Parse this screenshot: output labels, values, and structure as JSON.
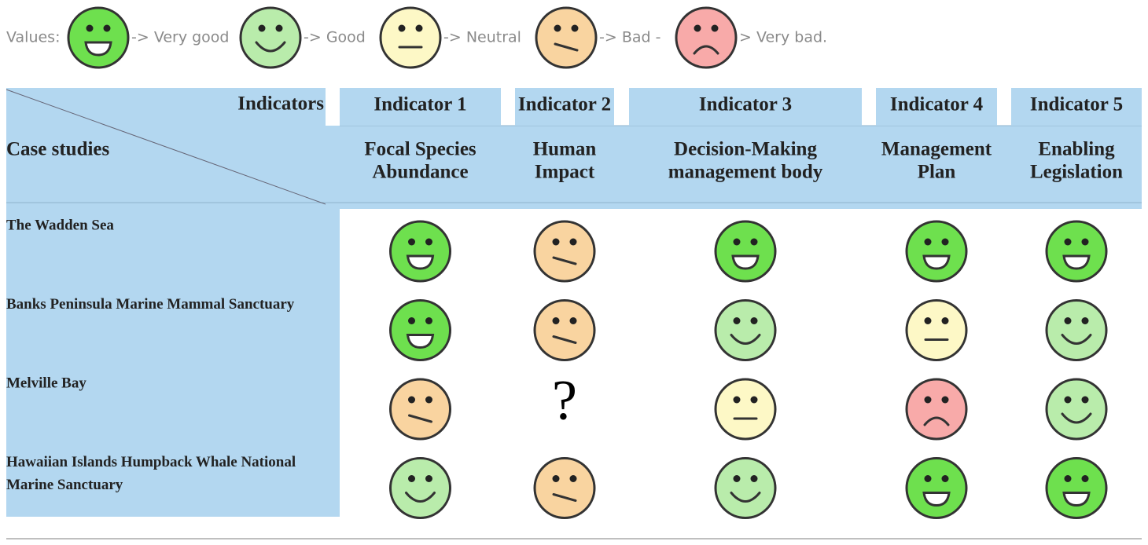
{
  "legend": {
    "title": "Values:",
    "items": [
      {
        "label": "-> Very good",
        "color": "#6ee04e"
      },
      {
        "label": "-> Good",
        "color": "#b9ecab"
      },
      {
        "label": "-> Neutral",
        "color": "#fdf8c6"
      },
      {
        "label": "-> Bad -",
        "color": "#f9d4a0"
      },
      {
        "label": "> Very bad.",
        "color": "#f8aaa9"
      }
    ]
  },
  "table": {
    "corner": {
      "top": "Indicators",
      "bottom": "Case studies"
    },
    "columns": [
      {
        "indicator": "Indicator 1",
        "name": [
          "Focal Species",
          "Abundance"
        ]
      },
      {
        "indicator": "Indicator 2",
        "name": [
          "Human",
          "Impact"
        ]
      },
      {
        "indicator": "Indicator 3",
        "name": [
          "Decision-Making",
          "management body"
        ]
      },
      {
        "indicator": "Indicator 4",
        "name": [
          "Management",
          "Plan"
        ]
      },
      {
        "indicator": "Indicator 5",
        "name": [
          "Enabling",
          "Legislation"
        ]
      }
    ],
    "rows": [
      {
        "name": [
          "The Wadden Sea"
        ],
        "cells": [
          0,
          3,
          0,
          0,
          0
        ]
      },
      {
        "name": [
          "Banks Peninsula Marine Mammal Sanctuary"
        ],
        "cells": [
          0,
          3,
          1,
          2,
          1
        ]
      },
      {
        "name": [
          "Melville Bay"
        ],
        "cells": [
          3,
          "?",
          2,
          4,
          1
        ]
      },
      {
        "name": [
          "Hawaiian Islands Humpback Whale National",
          "Marine Sanctuary"
        ],
        "cells": [
          1,
          3,
          1,
          0,
          0
        ]
      }
    ]
  }
}
